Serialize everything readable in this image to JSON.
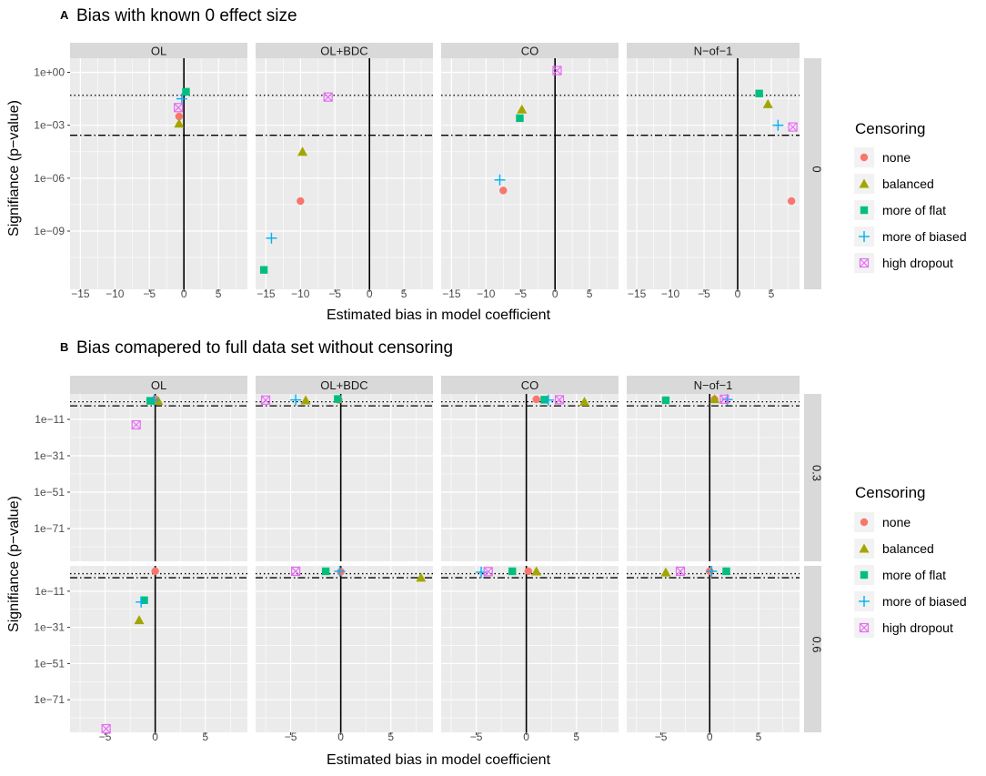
{
  "figure": {
    "a": {
      "letter": "A",
      "title": "Bias with known 0 effect size",
      "xlabel": "Estimated bias in model coefficient",
      "ylabel": "Signifiance (p−value)",
      "legend_title": "Censoring"
    },
    "b": {
      "letter": "B",
      "title": "Bias comapered to full data set without censoring",
      "xlabel": "Estimated bias in model coefficient",
      "ylabel": "Signifiance (p−value)",
      "legend_title": "Censoring"
    }
  },
  "chart_data": [
    {
      "type": "scatter",
      "panel": "A",
      "title": "Bias with known 0 effect size",
      "xlabel": "Estimated bias in model coefficient",
      "ylabel": "Signifiance (p−value)",
      "x_scale": "linear",
      "y_scale": "log10",
      "xlim": [
        -16.5,
        9.2
      ],
      "ylim_log10": [
        -12.3,
        0.8
      ],
      "x_ticks": [
        -15,
        -10,
        -5,
        0,
        5
      ],
      "x_tick_labels": [
        "−15",
        "−10",
        "−5",
        "0",
        "5"
      ],
      "y_ticks_log10": [
        0,
        -3,
        -6,
        -9
      ],
      "y_tick_labels": [
        "1e+00",
        "1e−03",
        "1e−06",
        "1e−09"
      ],
      "reference_lines": {
        "vertical_x": 0,
        "dotted_p": 0.05,
        "dotdash_p": 0.00027
      },
      "facet_columns": [
        "OL",
        "OL+BDC",
        "CO",
        "N−of−1"
      ],
      "facet_rows": [
        "0"
      ],
      "legend_title": "Censoring",
      "legend": [
        "none",
        "balanced",
        "more of flat",
        "more of biased",
        "high dropout"
      ],
      "colors": {
        "none": "#F8766D",
        "balanced": "#A3A500",
        "more of flat": "#00BF7D",
        "more of biased": "#00B0F6",
        "high dropout": "#E76BF3"
      },
      "series": [
        {
          "name": "none",
          "shape": "circle",
          "points": [
            [
              -0.7,
              -2.5,
              0,
              0
            ],
            [
              -10,
              -7.3,
              1,
              0
            ],
            [
              -7.5,
              -6.7,
              2,
              0
            ],
            [
              8,
              -7.3,
              3,
              0
            ]
          ]
        },
        {
          "name": "balanced",
          "shape": "triangle",
          "points": [
            [
              -0.7,
              -2.9,
              0,
              0
            ],
            [
              -9.7,
              -4.5,
              1,
              0
            ],
            [
              -4.8,
              -2.1,
              2,
              0
            ],
            [
              4.5,
              -1.8,
              3,
              0
            ]
          ]
        },
        {
          "name": "more of flat",
          "shape": "square",
          "points": [
            [
              0.3,
              -1.1,
              0,
              0
            ],
            [
              -15.3,
              -11.2,
              1,
              0
            ],
            [
              -5.1,
              -2.6,
              2,
              0
            ],
            [
              3.2,
              -1.2,
              3,
              0
            ]
          ]
        },
        {
          "name": "more of biased",
          "shape": "plus",
          "points": [
            [
              -0.3,
              -1.5,
              0,
              0
            ],
            [
              -14.2,
              -9.4,
              1,
              0
            ],
            [
              -8,
              -6.1,
              2,
              0
            ],
            [
              6,
              -3,
              3,
              0
            ]
          ]
        },
        {
          "name": "high dropout",
          "shape": "boxx",
          "points": [
            [
              -0.8,
              -2,
              0,
              0
            ],
            [
              -6,
              -1.4,
              1,
              0
            ],
            [
              0.3,
              0.1,
              2,
              0
            ],
            [
              8.2,
              -3.1,
              3,
              0
            ]
          ]
        }
      ]
    },
    {
      "type": "scatter",
      "panel": "B",
      "title": "Bias comapered to full data set without censoring",
      "xlabel": "Estimated bias in model coefficient",
      "ylabel": "Signifiance (p−value)",
      "x_scale": "linear",
      "y_scale": "log10",
      "xlim": [
        -8.5,
        9.2
      ],
      "ylim_log10": [
        -89,
        3
      ],
      "x_ticks": [
        -5,
        0,
        5
      ],
      "x_tick_labels": [
        "−5",
        "0",
        "5"
      ],
      "y_ticks_log10": [
        -11,
        -31,
        -51,
        -71
      ],
      "y_tick_labels": [
        "1e−11",
        "1e−31",
        "1e−51",
        "1e−71"
      ],
      "reference_lines": {
        "vertical_x": 0,
        "dotted_p": 0.05,
        "dotdash_p": 0.00027
      },
      "facet_columns": [
        "OL",
        "OL+BDC",
        "CO",
        "N−of−1"
      ],
      "facet_rows": [
        "0.3",
        "0.6"
      ],
      "legend_title": "Censoring",
      "legend": [
        "none",
        "balanced",
        "more of flat",
        "more of biased",
        "high dropout"
      ],
      "colors": {
        "none": "#F8766D",
        "balanced": "#A3A500",
        "more of flat": "#00BF7D",
        "more of biased": "#00B0F6",
        "high dropout": "#E76BF3"
      },
      "series": [
        {
          "name": "none",
          "shape": "circle",
          "points": [
            [
              0,
              0,
              0,
              0
            ],
            [
              -0.2,
              -0.3,
              1,
              0
            ],
            [
              1,
              0,
              2,
              0
            ],
            [
              0.5,
              0,
              3,
              0
            ],
            [
              0,
              0,
              0,
              1
            ],
            [
              0,
              -0.3,
              1,
              1
            ],
            [
              0.2,
              0,
              2,
              1
            ],
            [
              0,
              0,
              3,
              1
            ]
          ]
        },
        {
          "name": "balanced",
          "shape": "triangle",
          "points": [
            [
              0.3,
              -0.8,
              0,
              0
            ],
            [
              -3.5,
              -0.5,
              1,
              0
            ],
            [
              5.8,
              -1.3,
              2,
              0
            ],
            [
              0.5,
              0.2,
              3,
              0
            ],
            [
              -1.6,
              -27,
              0,
              1
            ],
            [
              8,
              -3.5,
              1,
              1
            ],
            [
              1,
              0,
              2,
              1
            ],
            [
              -4.5,
              -0.6,
              3,
              1
            ]
          ]
        },
        {
          "name": "more of flat",
          "shape": "square",
          "points": [
            [
              -0.5,
              -0.8,
              0,
              0
            ],
            [
              -0.3,
              0.2,
              1,
              0
            ],
            [
              1.8,
              -0.2,
              2,
              0
            ],
            [
              -4.5,
              -0.5,
              3,
              0
            ],
            [
              -1.1,
              -16,
              0,
              1
            ],
            [
              -1.5,
              0,
              1,
              1
            ],
            [
              -1.4,
              0,
              2,
              1
            ],
            [
              1.7,
              0,
              3,
              1
            ]
          ]
        },
        {
          "name": "more of biased",
          "shape": "plus",
          "points": [
            [
              -0.1,
              -0.4,
              0,
              0
            ],
            [
              -4.5,
              -0.3,
              1,
              0
            ],
            [
              2.2,
              -0.4,
              2,
              0
            ],
            [
              1.8,
              -0.1,
              3,
              0
            ],
            [
              -1.4,
              -17,
              0,
              1
            ],
            [
              -0.1,
              0,
              1,
              1
            ],
            [
              -4.5,
              -0.5,
              2,
              1
            ],
            [
              0.2,
              0,
              3,
              1
            ]
          ]
        },
        {
          "name": "high dropout",
          "shape": "boxx",
          "points": [
            [
              -1.9,
              -14,
              0,
              0
            ],
            [
              -7.5,
              -0.4,
              1,
              0
            ],
            [
              3.3,
              -0.2,
              2,
              0
            ],
            [
              1.5,
              0.1,
              3,
              0
            ],
            [
              -4.9,
              -87,
              0,
              1
            ],
            [
              -4.5,
              0,
              1,
              1
            ],
            [
              -3.8,
              -0.2,
              2,
              1
            ],
            [
              -3,
              0,
              3,
              1
            ]
          ]
        }
      ]
    }
  ]
}
